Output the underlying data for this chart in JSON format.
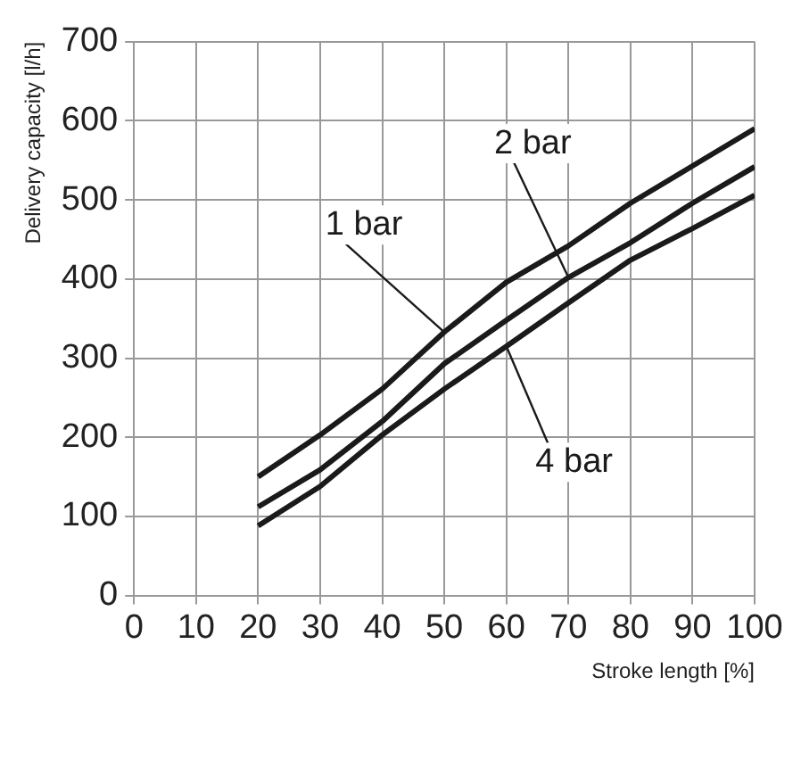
{
  "chart_data": {
    "type": "line",
    "xlabel": "Stroke length [%]",
    "ylabel": "Delivery capacity [l/h]",
    "x": [
      20,
      30,
      40,
      50,
      60,
      70,
      80,
      90,
      100
    ],
    "series": [
      {
        "name": "1 bar",
        "color": "#1a1a1a",
        "values": [
          150,
          203,
          261,
          333,
          396,
          442,
          496,
          543,
          590
        ]
      },
      {
        "name": "2 bar",
        "color": "#1a1a1a",
        "values": [
          112,
          159,
          220,
          293,
          348,
          402,
          446,
          496,
          542
        ]
      },
      {
        "name": "4 bar",
        "color": "#1a1a1a",
        "values": [
          88,
          138,
          203,
          261,
          315,
          370,
          424,
          464,
          506
        ]
      }
    ],
    "xlim": [
      0,
      100
    ],
    "xticks": [
      0,
      10,
      20,
      30,
      40,
      50,
      60,
      70,
      80,
      90,
      100
    ],
    "ylim": [
      0,
      700
    ],
    "yticks": [
      0,
      100,
      200,
      300,
      400,
      500,
      600,
      700
    ],
    "grid": true,
    "legend": false,
    "marker": "none",
    "line_style": "solid"
  }
}
